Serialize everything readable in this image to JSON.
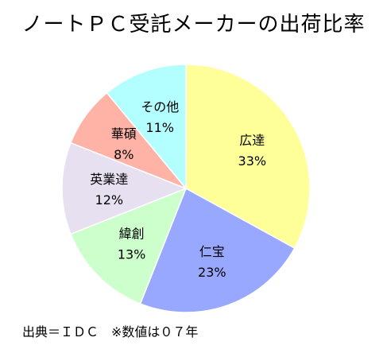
{
  "chart_data": {
    "type": "pie",
    "title": "ノートＰＣ受託メーカーの出荷比率",
    "slices": [
      {
        "label": "広達",
        "percent_label": "33%",
        "value": 33,
        "color": "#FFFF99"
      },
      {
        "label": "仁宝",
        "percent_label": "23%",
        "value": 23,
        "color": "#99A8FF"
      },
      {
        "label": "緯創",
        "percent_label": "13%",
        "value": 13,
        "color": "#CCFFCC"
      },
      {
        "label": "英業達",
        "percent_label": "12%",
        "value": 12,
        "color": "#E6E0F0"
      },
      {
        "label": "華碩",
        "percent_label": "8%",
        "value": 8,
        "color": "#FFB3A6"
      },
      {
        "label": "その他",
        "percent_label": "11%",
        "value": 11,
        "color": "#B3FFFF"
      }
    ],
    "start_angle": "12 o'clock",
    "direction": "clockwise"
  },
  "footer": {
    "source": "出典＝ＩＤＣ　※数値は０７年"
  }
}
